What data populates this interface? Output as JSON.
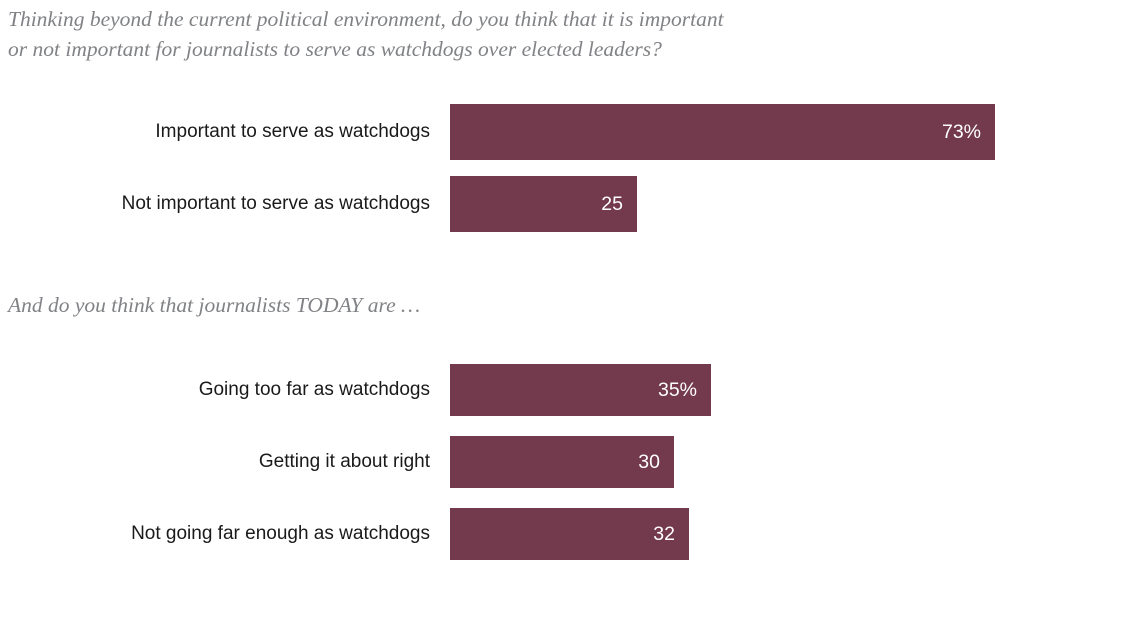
{
  "page": {
    "background": "#ffffff"
  },
  "colors": {
    "bar_fill": "#733a4d",
    "question_text": "#808285",
    "category_text": "#1a1a1a",
    "value_text": "#ffffff"
  },
  "chart_data": [
    {
      "type": "bar",
      "orientation": "horizontal",
      "title": "Thinking beyond the current political environment, do you think that it is important or not important for journalists to serve as watchdogs over elected leaders?",
      "title_lines": [
        "Thinking beyond the current political environment, do you think that it is important",
        "or not important for journalists to serve as watchdogs over elected leaders?"
      ],
      "categories": [
        "Important to serve as watchdogs",
        "Not important to serve as watchdogs"
      ],
      "values": [
        73,
        25
      ],
      "value_labels": [
        "73%",
        "25"
      ],
      "xlim": [
        0,
        100
      ],
      "bar_color": "#733a4d",
      "grid": false,
      "legend": false
    },
    {
      "type": "bar",
      "orientation": "horizontal",
      "title": "And do you think that journalists TODAY are …",
      "title_lines": [
        "And do you think that journalists TODAY are …"
      ],
      "categories": [
        "Going too far as watchdogs",
        "Getting it about right",
        "Not going far enough as watchdogs"
      ],
      "values": [
        35,
        30,
        32
      ],
      "value_labels": [
        "35%",
        "30",
        "32"
      ],
      "xlim": [
        0,
        100
      ],
      "bar_color": "#733a4d",
      "grid": false,
      "legend": false
    }
  ]
}
